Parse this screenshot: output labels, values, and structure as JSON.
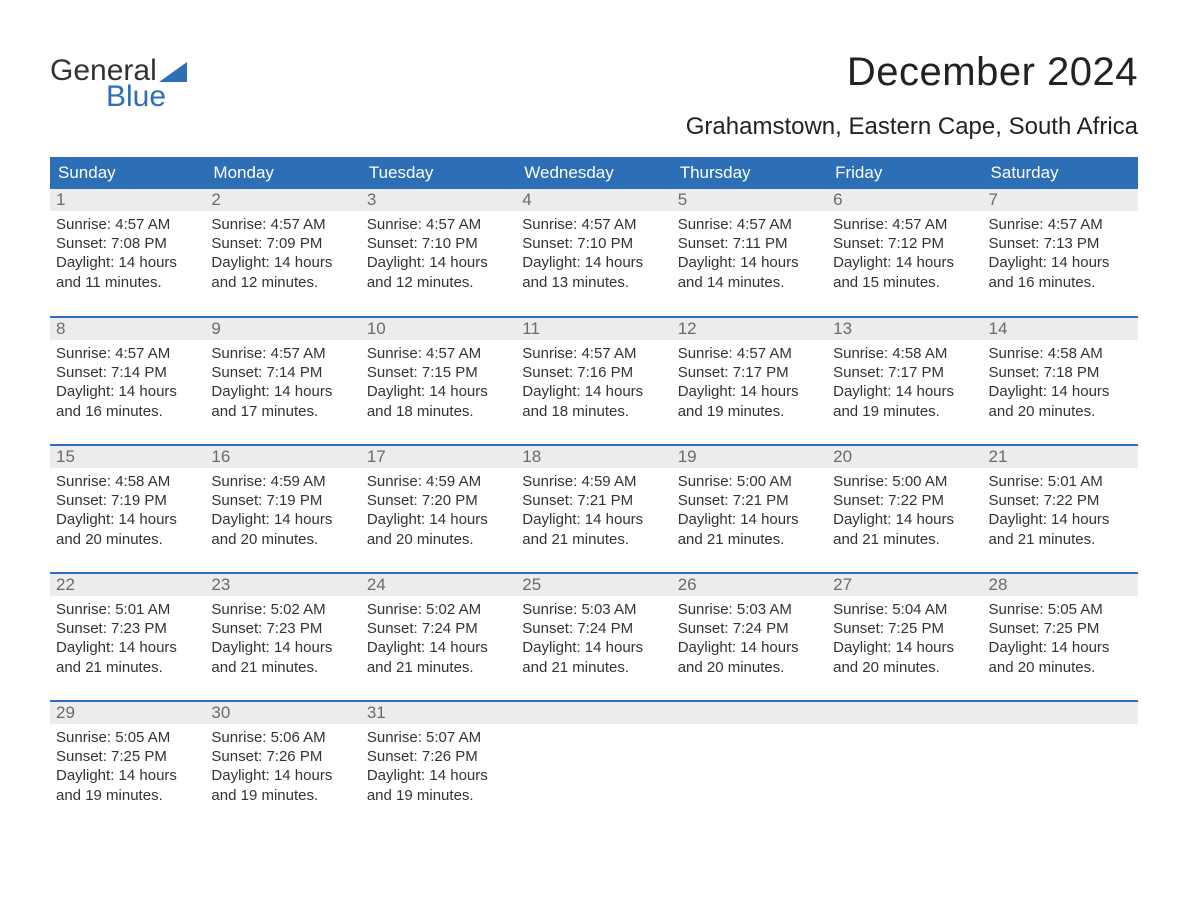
{
  "logo": {
    "word1": "General",
    "word2": "Blue",
    "accent_color": "#2d6fb6"
  },
  "title": "December 2024",
  "location": "Grahamstown, Eastern Cape, South Africa",
  "styling": {
    "header_bg": "#2d6fb6",
    "header_text": "#ffffff",
    "daynum_bg": "#ececec",
    "daynum_color": "#6b6b6b",
    "body_text": "#333333",
    "week_border": "#2d6fb6",
    "page_bg": "#ffffff",
    "title_fontsize": 40,
    "location_fontsize": 24,
    "header_fontsize": 17,
    "cell_fontsize": 15
  },
  "columns": [
    "Sunday",
    "Monday",
    "Tuesday",
    "Wednesday",
    "Thursday",
    "Friday",
    "Saturday"
  ],
  "labels": {
    "sunrise": "Sunrise:",
    "sunset": "Sunset:",
    "daylight": "Daylight:"
  },
  "weeks": [
    [
      {
        "n": "1",
        "sr": "4:57 AM",
        "ss": "7:08 PM",
        "dl": "14 hours and 11 minutes."
      },
      {
        "n": "2",
        "sr": "4:57 AM",
        "ss": "7:09 PM",
        "dl": "14 hours and 12 minutes."
      },
      {
        "n": "3",
        "sr": "4:57 AM",
        "ss": "7:10 PM",
        "dl": "14 hours and 12 minutes."
      },
      {
        "n": "4",
        "sr": "4:57 AM",
        "ss": "7:10 PM",
        "dl": "14 hours and 13 minutes."
      },
      {
        "n": "5",
        "sr": "4:57 AM",
        "ss": "7:11 PM",
        "dl": "14 hours and 14 minutes."
      },
      {
        "n": "6",
        "sr": "4:57 AM",
        "ss": "7:12 PM",
        "dl": "14 hours and 15 minutes."
      },
      {
        "n": "7",
        "sr": "4:57 AM",
        "ss": "7:13 PM",
        "dl": "14 hours and 16 minutes."
      }
    ],
    [
      {
        "n": "8",
        "sr": "4:57 AM",
        "ss": "7:14 PM",
        "dl": "14 hours and 16 minutes."
      },
      {
        "n": "9",
        "sr": "4:57 AM",
        "ss": "7:14 PM",
        "dl": "14 hours and 17 minutes."
      },
      {
        "n": "10",
        "sr": "4:57 AM",
        "ss": "7:15 PM",
        "dl": "14 hours and 18 minutes."
      },
      {
        "n": "11",
        "sr": "4:57 AM",
        "ss": "7:16 PM",
        "dl": "14 hours and 18 minutes."
      },
      {
        "n": "12",
        "sr": "4:57 AM",
        "ss": "7:17 PM",
        "dl": "14 hours and 19 minutes."
      },
      {
        "n": "13",
        "sr": "4:58 AM",
        "ss": "7:17 PM",
        "dl": "14 hours and 19 minutes."
      },
      {
        "n": "14",
        "sr": "4:58 AM",
        "ss": "7:18 PM",
        "dl": "14 hours and 20 minutes."
      }
    ],
    [
      {
        "n": "15",
        "sr": "4:58 AM",
        "ss": "7:19 PM",
        "dl": "14 hours and 20 minutes."
      },
      {
        "n": "16",
        "sr": "4:59 AM",
        "ss": "7:19 PM",
        "dl": "14 hours and 20 minutes."
      },
      {
        "n": "17",
        "sr": "4:59 AM",
        "ss": "7:20 PM",
        "dl": "14 hours and 20 minutes."
      },
      {
        "n": "18",
        "sr": "4:59 AM",
        "ss": "7:21 PM",
        "dl": "14 hours and 21 minutes."
      },
      {
        "n": "19",
        "sr": "5:00 AM",
        "ss": "7:21 PM",
        "dl": "14 hours and 21 minutes."
      },
      {
        "n": "20",
        "sr": "5:00 AM",
        "ss": "7:22 PM",
        "dl": "14 hours and 21 minutes."
      },
      {
        "n": "21",
        "sr": "5:01 AM",
        "ss": "7:22 PM",
        "dl": "14 hours and 21 minutes."
      }
    ],
    [
      {
        "n": "22",
        "sr": "5:01 AM",
        "ss": "7:23 PM",
        "dl": "14 hours and 21 minutes."
      },
      {
        "n": "23",
        "sr": "5:02 AM",
        "ss": "7:23 PM",
        "dl": "14 hours and 21 minutes."
      },
      {
        "n": "24",
        "sr": "5:02 AM",
        "ss": "7:24 PM",
        "dl": "14 hours and 21 minutes."
      },
      {
        "n": "25",
        "sr": "5:03 AM",
        "ss": "7:24 PM",
        "dl": "14 hours and 21 minutes."
      },
      {
        "n": "26",
        "sr": "5:03 AM",
        "ss": "7:24 PM",
        "dl": "14 hours and 20 minutes."
      },
      {
        "n": "27",
        "sr": "5:04 AM",
        "ss": "7:25 PM",
        "dl": "14 hours and 20 minutes."
      },
      {
        "n": "28",
        "sr": "5:05 AM",
        "ss": "7:25 PM",
        "dl": "14 hours and 20 minutes."
      }
    ],
    [
      {
        "n": "29",
        "sr": "5:05 AM",
        "ss": "7:25 PM",
        "dl": "14 hours and 19 minutes."
      },
      {
        "n": "30",
        "sr": "5:06 AM",
        "ss": "7:26 PM",
        "dl": "14 hours and 19 minutes."
      },
      {
        "n": "31",
        "sr": "5:07 AM",
        "ss": "7:26 PM",
        "dl": "14 hours and 19 minutes."
      },
      null,
      null,
      null,
      null
    ]
  ]
}
